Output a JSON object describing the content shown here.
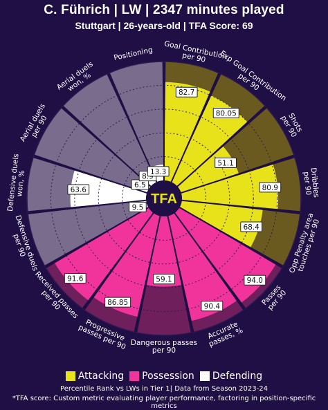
{
  "header": {
    "title": "C. Führich | LW | 2347 minutes played",
    "subtitle": "Stuttgart | 26-years-old | TFA Score: 69"
  },
  "center_label": "TFA",
  "legend": {
    "items": [
      {
        "label": "Attacking",
        "color": "#e8e21a"
      },
      {
        "label": "Possession",
        "color": "#f0349b"
      },
      {
        "label": "Defending",
        "color": "#ffffff"
      }
    ]
  },
  "caption": "Percentile Rank vs LWs in Tier 1| Data from Season 2023-24",
  "footnote": "*TFA score: Custom metric evaluating player performance, factoring in position-specific metrics",
  "colors": {
    "background": "#1f0f44",
    "attacking_bg": "#6b5a1f",
    "possession_bg": "#6e1f5c",
    "defending_bg": "#7a6c8c",
    "attacking": "#e8e21a",
    "possession": "#f0349b",
    "defending": "#ffffff",
    "center": "#1f0f44",
    "center_text": "#e8e21a"
  },
  "chart_data": {
    "type": "radar-bar",
    "title": "C. Führich | LW | 2347 minutes played",
    "subtitle": "Stuttgart | 26-years-old | TFA Score: 69",
    "scale": [
      0,
      100
    ],
    "categories": [
      {
        "label": "Goal Contribution\nper 90",
        "value": 82.7,
        "label_text": "82.7",
        "group": "attacking"
      },
      {
        "label": "Exp Goal Contribution\nper 90",
        "value": 80.05,
        "label_text": "80.05",
        "group": "attacking"
      },
      {
        "label": "Shots\nper 90",
        "value": 51.1,
        "label_text": "51.1",
        "group": "attacking"
      },
      {
        "label": "Dribbles\nper 90",
        "value": 80.9,
        "label_text": "80.9",
        "group": "attacking"
      },
      {
        "label": "Opp Penalty area\ntouches per 90",
        "value": 68.4,
        "label_text": "68.4",
        "group": "attacking"
      },
      {
        "label": "Passes\nper 90",
        "value": 94.0,
        "label_text": "94.0",
        "group": "possession"
      },
      {
        "label": "Accurate\npasses, %",
        "value": 90.4,
        "label_text": "90.4",
        "group": "possession"
      },
      {
        "label": "Dangerous passes\nper 90",
        "value": 59.1,
        "label_text": "59.1",
        "group": "possession"
      },
      {
        "label": "Progressive\npasses per 90",
        "value": 86.85,
        "label_text": "86.85",
        "group": "possession"
      },
      {
        "label": "Received passes\nper 90",
        "value": 91.6,
        "label_text": "91.6",
        "group": "possession"
      },
      {
        "label": "Defensive duels\nper 90",
        "value": 9.5,
        "label_text": "9.5",
        "group": "defending"
      },
      {
        "label": "Defensive duels\nwon, %",
        "value": 63.6,
        "label_text": "63.6",
        "group": "defending"
      },
      {
        "label": "Aerial duels\nper 90",
        "value": 6.5,
        "label_text": "6.5",
        "group": "defending"
      },
      {
        "label": "Aerial duels\nwon, %",
        "value": 8.9,
        "label_text": "8.9",
        "group": "defending"
      },
      {
        "label": "Positioning",
        "value": 13.3,
        "label_text": "13.3",
        "group": "defending"
      }
    ],
    "legend": [
      "Attacking",
      "Possession",
      "Defending"
    ],
    "legend_placement": "bottom-center",
    "grid": true
  }
}
